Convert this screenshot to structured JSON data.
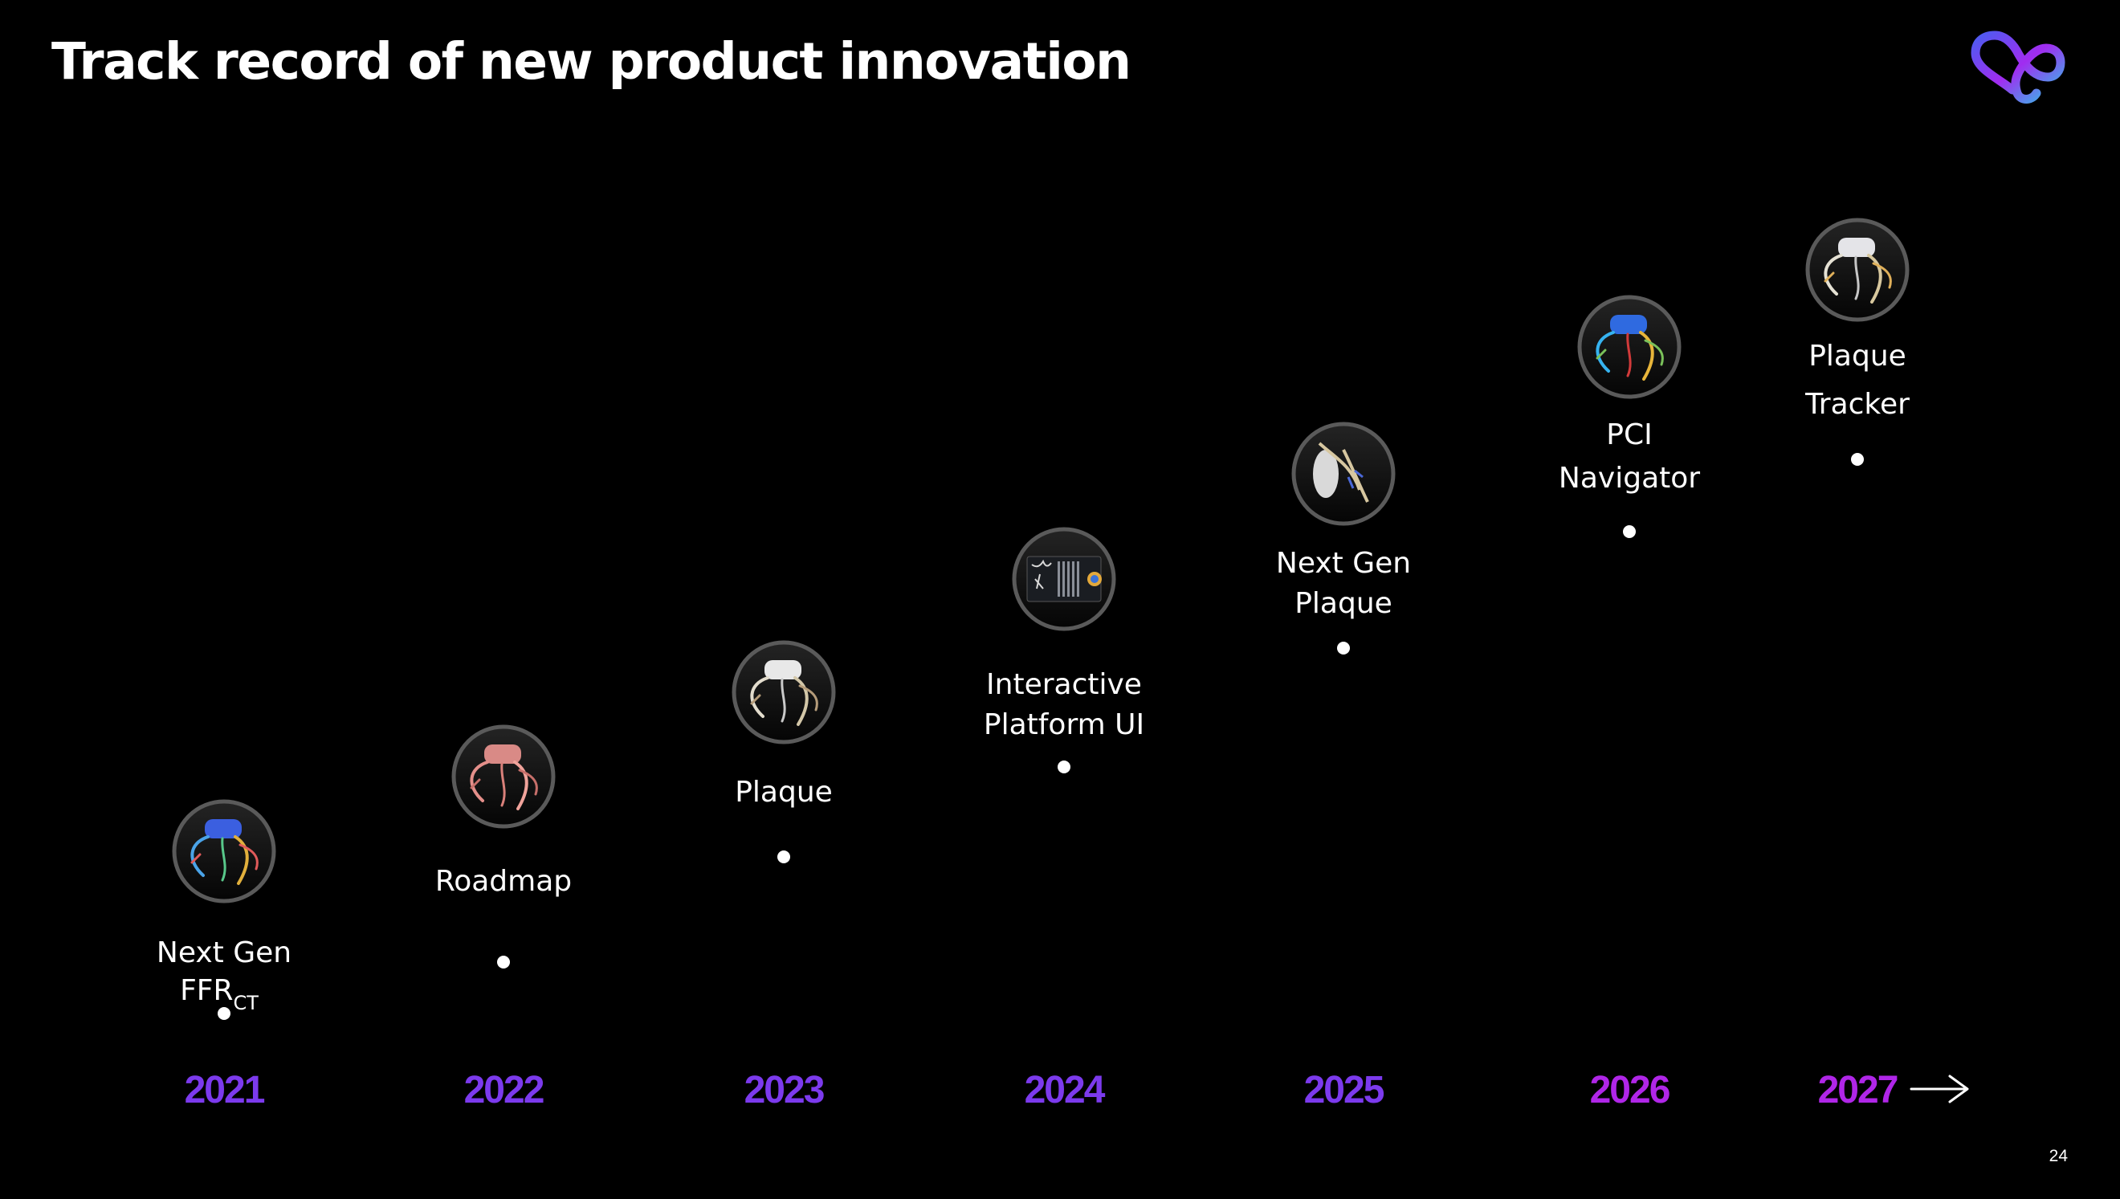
{
  "slide": {
    "title": "Track record of new product innovation",
    "page_number": "24"
  },
  "colors": {
    "background": "#000000",
    "text": "#ffffff",
    "year_purple": "#7c3aed",
    "year_magenta": "#b026e8",
    "logo_blue": "#4c5cf0",
    "logo_cyan": "#2fc4e8",
    "logo_purple": "#a12cf0"
  },
  "milestones": [
    {
      "year": "2021",
      "lines": [
        "Next Gen",
        "FFR"
      ],
      "subscript": "CT",
      "image": "heart-model-blue"
    },
    {
      "year": "2022",
      "lines": [
        "Roadmap"
      ],
      "image": "heart-model-pink"
    },
    {
      "year": "2023",
      "lines": [
        "Plaque"
      ],
      "image": "heart-model-white"
    },
    {
      "year": "2024",
      "lines": [
        "Interactive",
        "Platform UI"
      ],
      "image": "platform-ui-screen"
    },
    {
      "year": "2025",
      "lines": [
        "Next Gen",
        "Plaque"
      ],
      "image": "vessel-closeup"
    },
    {
      "year": "2026",
      "lines": [
        "PCI",
        "Navigator"
      ],
      "image": "heart-model-colored"
    },
    {
      "year": "2027",
      "lines": [
        "Plaque",
        "Tracker"
      ],
      "image": "heart-model-tracker"
    }
  ]
}
